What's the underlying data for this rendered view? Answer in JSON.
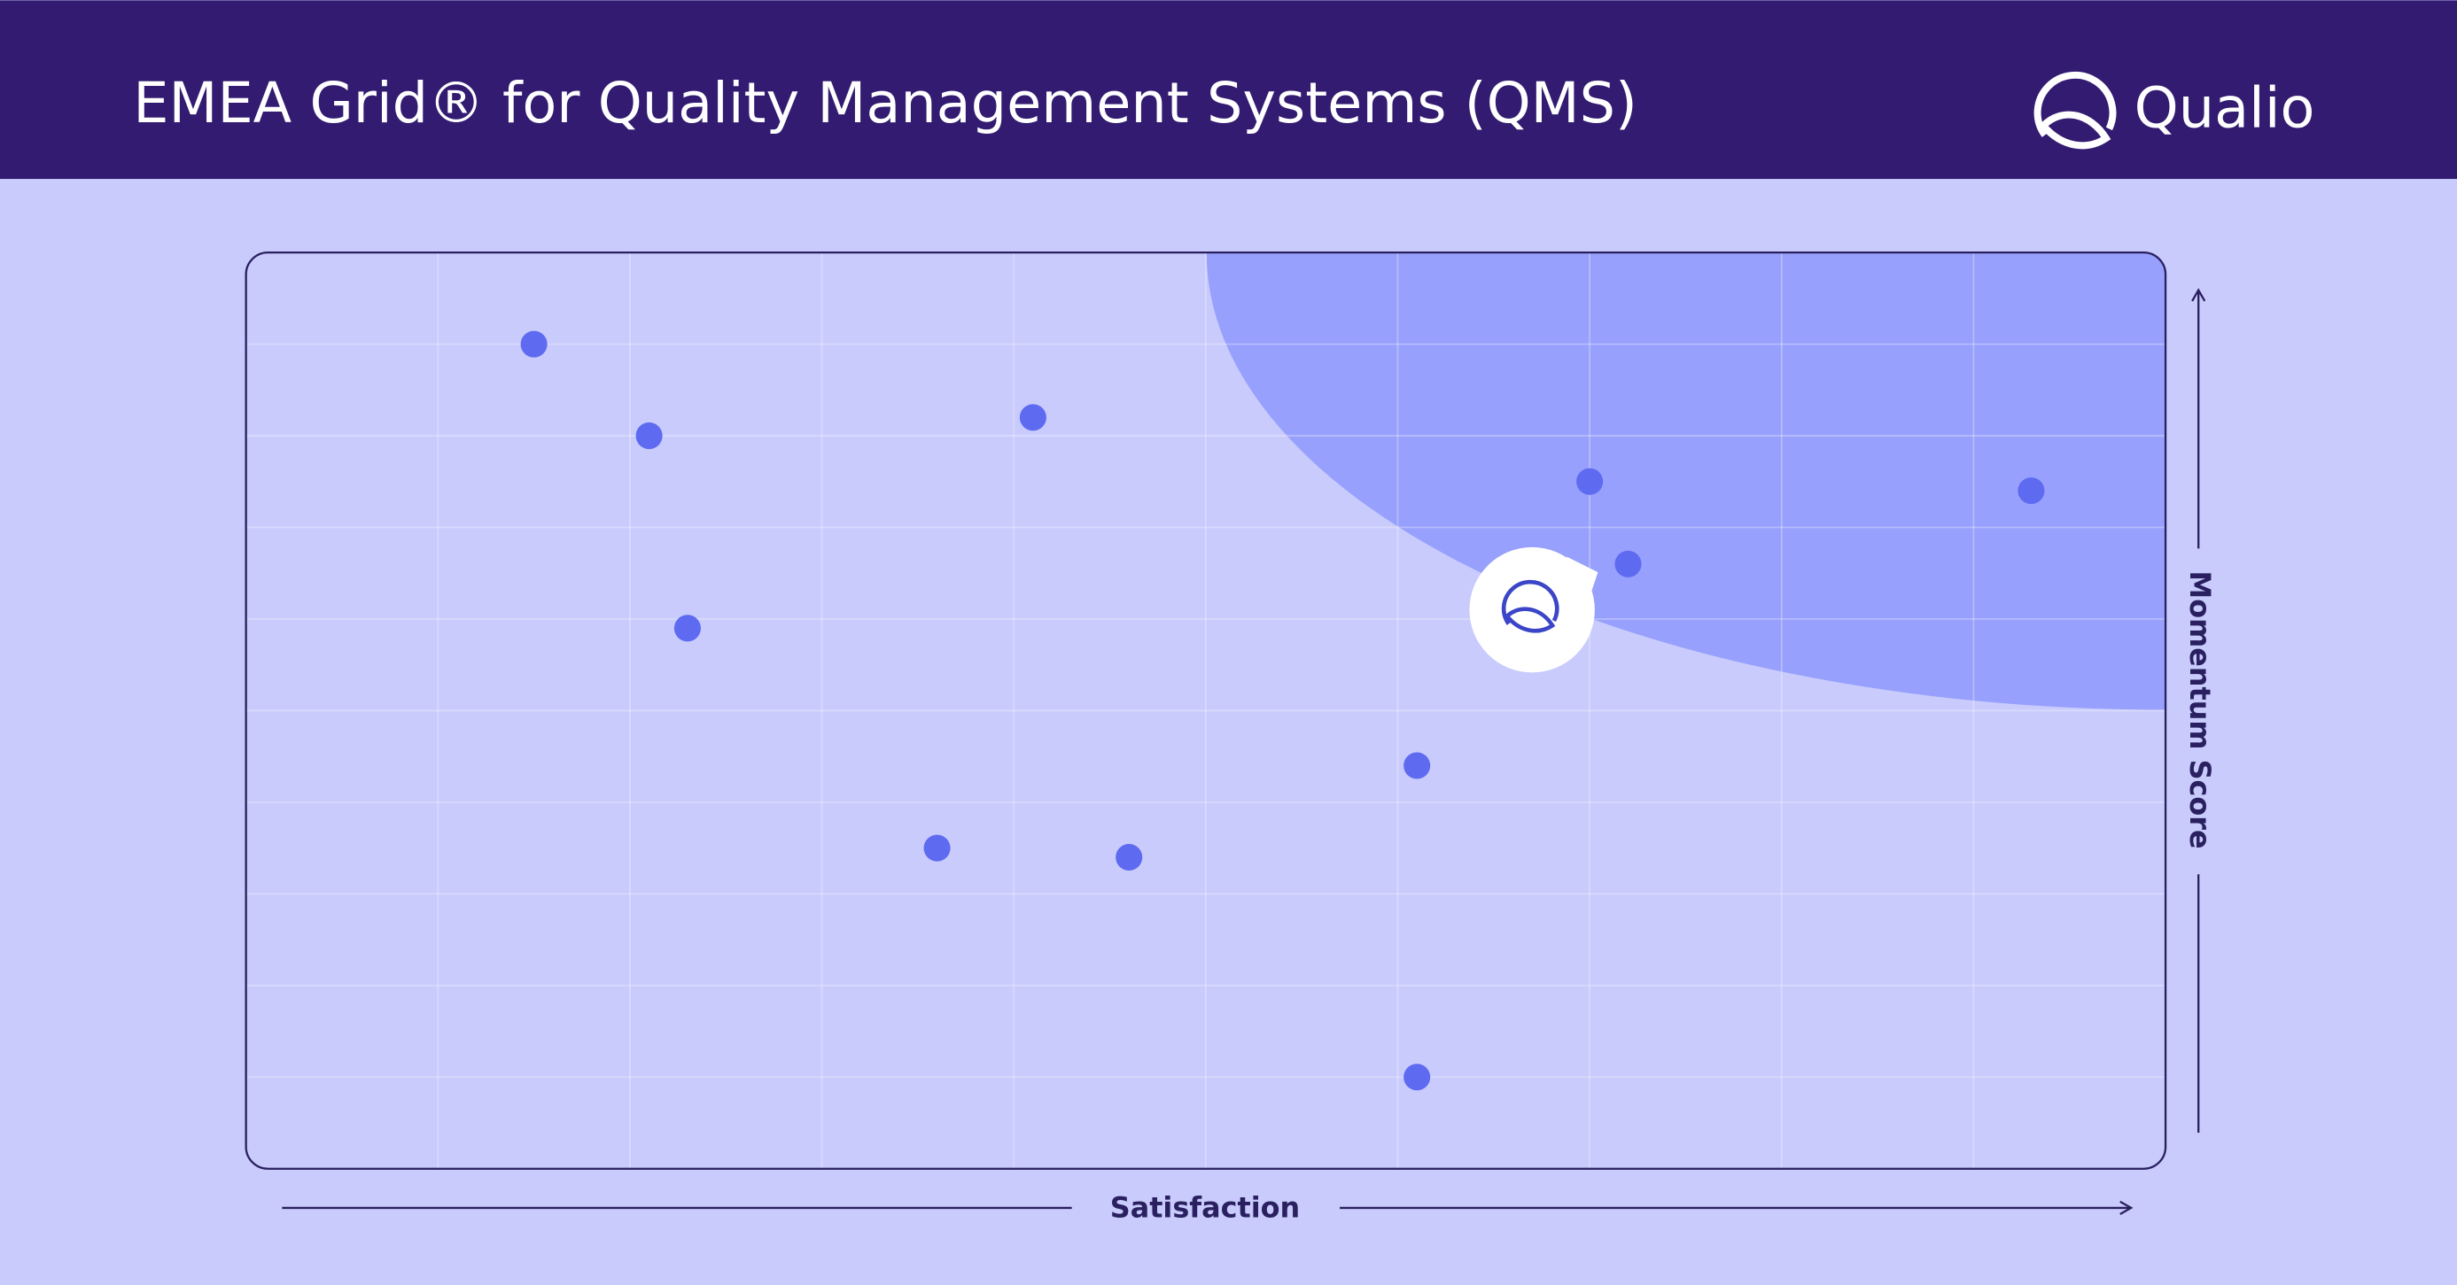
{
  "brand": "Qualio",
  "chart_data": {
    "type": "scatter",
    "title": "EMEA Grid® for Quality Management Systems (QMS)",
    "x_label": "Satisfaction",
    "y_label": "Momentum Score",
    "xlim": [
      0,
      10
    ],
    "ylim": [
      0,
      10
    ],
    "xticks": [
      1,
      2,
      3,
      4,
      5,
      6,
      7,
      8,
      9
    ],
    "yticks": [
      1,
      2,
      3,
      4,
      5,
      6,
      7,
      8,
      9
    ],
    "grid": true,
    "series": [
      {
        "color": "#5e6af0",
        "x": [
          1.5,
          2.1,
          4.1,
          2.3,
          7.0,
          9.3,
          7.2,
          6.1,
          3.6,
          4.6,
          6.1
        ],
        "y": [
          9.0,
          8.0,
          8.2,
          5.9,
          7.5,
          7.4,
          6.6,
          4.4,
          3.5,
          3.4,
          1.0
        ]
      }
    ],
    "highlight": {
      "x": 6.7,
      "y": 6.1
    }
  }
}
